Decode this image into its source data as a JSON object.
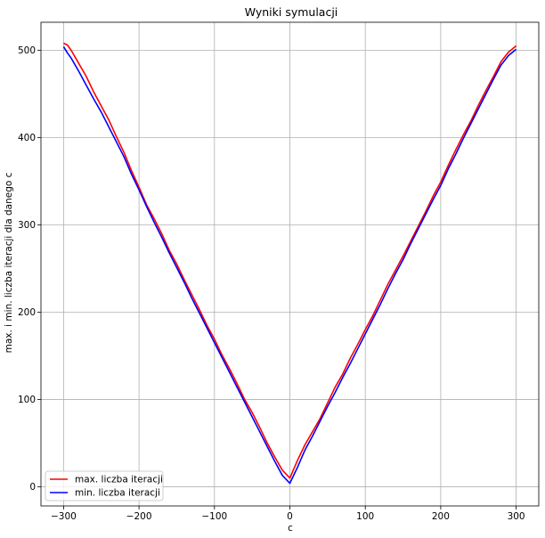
{
  "chart_data": {
    "type": "line",
    "title": "Wyniki symulacji",
    "xlabel": "c",
    "ylabel": "max. i min. liczba iteracji dla danego c",
    "xlim": [
      -330,
      330
    ],
    "ylim": [
      -22,
      532
    ],
    "xticks": [
      -300,
      -200,
      -100,
      0,
      100,
      200,
      300
    ],
    "yticks": [
      0,
      100,
      200,
      300,
      400,
      500
    ],
    "xtick_labels": [
      "−300",
      "−200",
      "−100",
      "0",
      "100",
      "200",
      "300"
    ],
    "ytick_labels": [
      "0",
      "100",
      "200",
      "300",
      "400",
      "500"
    ],
    "grid": true,
    "legend_position": "lower-left",
    "series": [
      {
        "name": "max. liczba iteracji",
        "color": "#ff0000",
        "x": [
          -300,
          -295,
          -290,
          -280,
          -270,
          -260,
          -250,
          -240,
          -230,
          -220,
          -210,
          -200,
          -190,
          -180,
          -170,
          -160,
          -150,
          -140,
          -130,
          -120,
          -110,
          -100,
          -90,
          -80,
          -70,
          -60,
          -50,
          -40,
          -30,
          -20,
          -10,
          0,
          10,
          20,
          30,
          40,
          50,
          60,
          70,
          80,
          90,
          100,
          110,
          120,
          130,
          140,
          150,
          160,
          170,
          180,
          190,
          200,
          210,
          220,
          230,
          240,
          250,
          260,
          270,
          280,
          290,
          300
        ],
        "y": [
          508,
          506,
          500,
          485,
          470,
          452,
          436,
          420,
          401,
          383,
          362,
          343,
          323,
          307,
          290,
          271,
          255,
          237,
          220,
          203,
          185,
          169,
          151,
          135,
          118,
          100,
          85,
          68,
          50,
          34,
          19,
          10,
          30,
          48,
          63,
          78,
          96,
          114,
          129,
          147,
          163,
          180,
          196,
          214,
          232,
          248,
          264,
          281,
          298,
          315,
          333,
          349,
          368,
          386,
          403,
          419,
          437,
          454,
          470,
          487,
          498,
          505
        ]
      },
      {
        "name": "min. liczba iteracji",
        "color": "#0000ff",
        "x": [
          -300,
          -295,
          -290,
          -280,
          -270,
          -260,
          -250,
          -240,
          -230,
          -220,
          -210,
          -200,
          -190,
          -180,
          -170,
          -160,
          -150,
          -140,
          -130,
          -120,
          -110,
          -100,
          -90,
          -80,
          -70,
          -60,
          -50,
          -40,
          -30,
          -20,
          -10,
          0,
          10,
          20,
          30,
          40,
          50,
          60,
          70,
          80,
          90,
          100,
          110,
          120,
          130,
          140,
          150,
          160,
          170,
          180,
          190,
          200,
          210,
          220,
          230,
          240,
          250,
          260,
          270,
          280,
          290,
          300
        ],
        "y": [
          504,
          497,
          491,
          476,
          460,
          444,
          429,
          412,
          395,
          378,
          358,
          340,
          321,
          303,
          286,
          268,
          251,
          234,
          216,
          199,
          182,
          165,
          148,
          131,
          114,
          97,
          80,
          63,
          46,
          29,
          13,
          4,
          22,
          42,
          58,
          75,
          92,
          108,
          125,
          141,
          158,
          175,
          192,
          209,
          227,
          244,
          260,
          278,
          295,
          312,
          329,
          345,
          364,
          381,
          399,
          416,
          433,
          450,
          467,
          483,
          494,
          501
        ]
      }
    ]
  }
}
